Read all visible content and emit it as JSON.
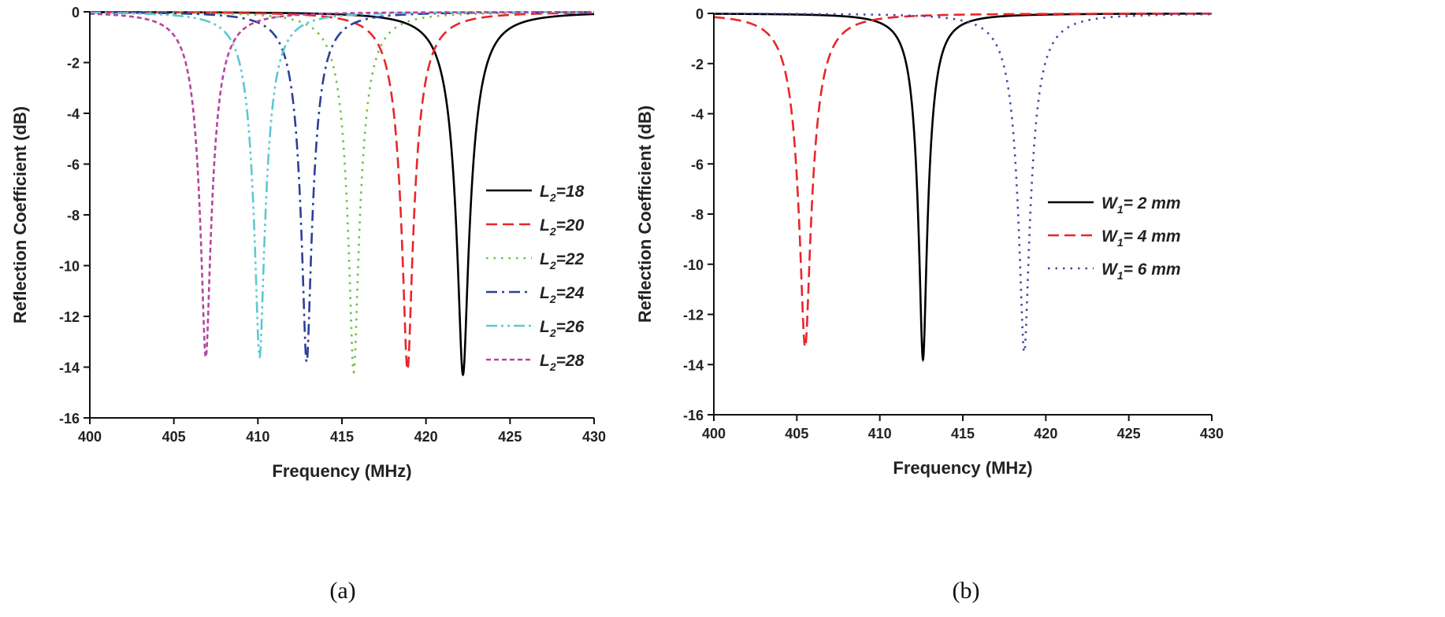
{
  "captions": [
    "(a)",
    "(b)"
  ],
  "chart_data": [
    {
      "type": "line",
      "xlabel": "Frequency (MHz)",
      "ylabel": "Reflection Coefficient (dB)",
      "xlim": [
        400,
        430
      ],
      "ylim": [
        -16,
        0
      ],
      "xticks": [
        400,
        405,
        410,
        415,
        420,
        425,
        430
      ],
      "yticks": [
        0,
        -2,
        -4,
        -6,
        -8,
        -10,
        -12,
        -14,
        -16
      ],
      "grid": false,
      "legend_position": "right",
      "series": [
        {
          "name": "L2=18",
          "label": {
            "var": "L",
            "sub": "2",
            "rest": "=18"
          },
          "color": "#000000",
          "dash": "solid",
          "resonance_mhz": 422.2,
          "min_db": -14.3
        },
        {
          "name": "L2=20",
          "label": {
            "var": "L",
            "sub": "2",
            "rest": "=20"
          },
          "color": "#e8262b",
          "dash": "dashed",
          "resonance_mhz": 418.9,
          "min_db": -14.1
        },
        {
          "name": "L2=22",
          "label": {
            "var": "L",
            "sub": "2",
            "rest": "=22"
          },
          "color": "#6cbf3c",
          "dash": "dotted",
          "resonance_mhz": 415.7,
          "min_db": -14.2
        },
        {
          "name": "L2=24",
          "label": {
            "var": "L",
            "sub": "2",
            "rest": "=24"
          },
          "color": "#2e3e99",
          "dash": "dash-dot",
          "resonance_mhz": 412.9,
          "min_db": -13.8
        },
        {
          "name": "L2=26",
          "label": {
            "var": "L",
            "sub": "2",
            "rest": "=26"
          },
          "color": "#5cc8d4",
          "dash": "dash-dot-dot",
          "resonance_mhz": 410.1,
          "min_db": -13.6
        },
        {
          "name": "L2=28",
          "label": {
            "var": "L",
            "sub": "2",
            "rest": "=28"
          },
          "color": "#b6449e",
          "dash": "short-dash",
          "resonance_mhz": 406.9,
          "min_db": -13.6
        }
      ]
    },
    {
      "type": "line",
      "xlabel": "Frequency (MHz)",
      "ylabel": "Reflection Coefficient (dB)",
      "xlim": [
        400,
        430
      ],
      "ylim": [
        -16,
        0
      ],
      "xticks": [
        400,
        405,
        410,
        415,
        420,
        425,
        430
      ],
      "yticks": [
        0,
        -2,
        -4,
        -6,
        -8,
        -10,
        -12,
        -14,
        -16
      ],
      "grid": false,
      "legend_position": "right",
      "series": [
        {
          "name": "W1= 2 mm",
          "label": {
            "var": "W",
            "sub": "1",
            "rest": "= 2 mm"
          },
          "color": "#000000",
          "dash": "solid",
          "resonance_mhz": 412.6,
          "min_db": -13.8
        },
        {
          "name": "W1= 4 mm",
          "label": {
            "var": "W",
            "sub": "1",
            "rest": "= 4 mm"
          },
          "color": "#e8262b",
          "dash": "dashed",
          "resonance_mhz": 405.5,
          "min_db": -13.3
        },
        {
          "name": "W1= 6 mm",
          "label": {
            "var": "W",
            "sub": "1",
            "rest": "= 6 mm"
          },
          "color": "#3a4aa8",
          "dash": "dotted",
          "resonance_mhz": 418.7,
          "min_db": -13.5
        }
      ]
    }
  ]
}
